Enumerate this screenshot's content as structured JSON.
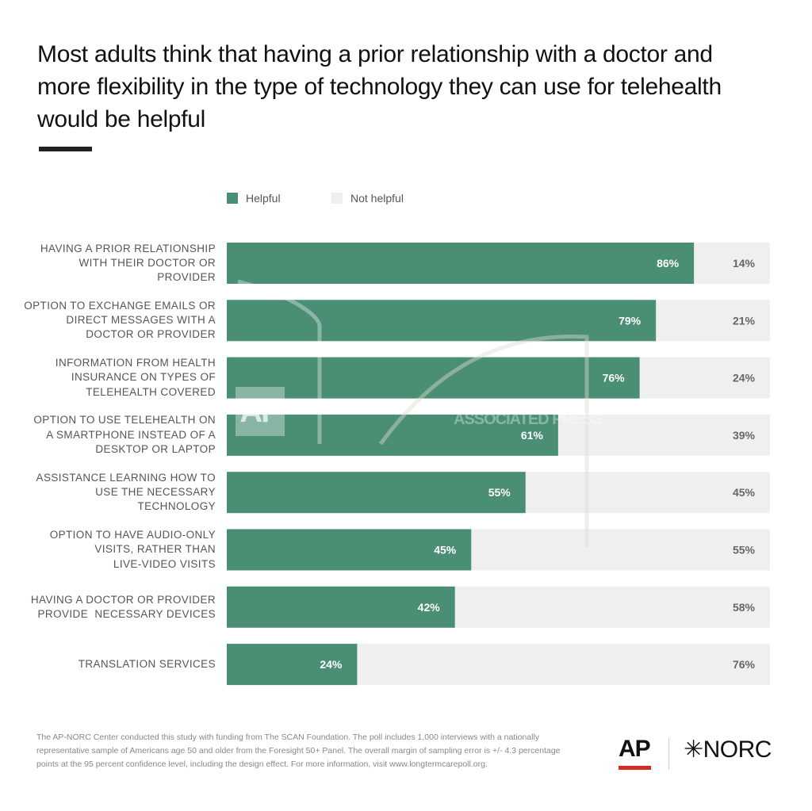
{
  "title": "Most adults think that having a prior relationship with a doctor and more flexibility in the type of technology they can use for telehealth would be helpful",
  "legend": {
    "helpful": "Helpful",
    "not_helpful": "Not helpful"
  },
  "colors": {
    "helpful": "#4a8f74",
    "not_helpful": "#efefef",
    "label_helpful": "#ffffff",
    "label_not_helpful": "#666666"
  },
  "chart_data": {
    "type": "bar",
    "orientation": "horizontal",
    "stacked": true,
    "categories": [
      "HAVING A PRIOR RELATIONSHIP WITH THEIR DOCTOR OR PROVIDER",
      "OPTION TO EXCHANGE EMAILS OR DIRECT MESSAGES WITH A DOCTOR OR PROVIDER",
      "INFORMATION FROM HEALTH INSURANCE ON TYPES OF TELEHEALTH COVERED",
      "OPTION TO USE TELEHEALTH ON A SMARTPHONE INSTEAD OF A DESKTOP OR LAPTOP",
      "ASSISTANCE LEARNING HOW TO USE THE NECESSARY TECHNOLOGY",
      "OPTION TO HAVE AUDIO-ONLY VISITS, RATHER THAN LIVE-VIDEO VISITS",
      "HAVING A DOCTOR OR PROVIDER PROVIDE  NECESSARY DEVICES",
      "TRANSLATION SERVICES"
    ],
    "category_lines": [
      [
        "HAVING A PRIOR RELATIONSHIP",
        "WITH THEIR DOCTOR OR",
        "PROVIDER"
      ],
      [
        "OPTION TO EXCHANGE EMAILS OR",
        "DIRECT MESSAGES WITH A",
        "DOCTOR OR PROVIDER"
      ],
      [
        "INFORMATION FROM HEALTH",
        "INSURANCE ON TYPES OF",
        "TELEHEALTH COVERED"
      ],
      [
        "OPTION TO USE TELEHEALTH ON",
        "A SMARTPHONE INSTEAD OF A",
        "DESKTOP OR LAPTOP"
      ],
      [
        "ASSISTANCE LEARNING HOW TO",
        "USE THE NECESSARY",
        "TECHNOLOGY"
      ],
      [
        "OPTION TO HAVE AUDIO-ONLY",
        "VISITS, RATHER THAN",
        "LIVE-VIDEO VISITS"
      ],
      [
        "HAVING A DOCTOR OR PROVIDER",
        "PROVIDE  NECESSARY DEVICES"
      ],
      [
        "TRANSLATION SERVICES"
      ]
    ],
    "series": [
      {
        "name": "Helpful",
        "values": [
          86,
          79,
          76,
          61,
          55,
          45,
          42,
          24
        ],
        "labels": [
          "86%",
          "79%",
          "76%",
          "61%",
          "55%",
          "45%",
          "42%",
          "24%"
        ]
      },
      {
        "name": "Not helpful",
        "values": [
          14,
          21,
          24,
          39,
          45,
          55,
          58,
          76
        ],
        "labels": [
          "14%",
          "21%",
          "24%",
          "39%",
          "45%",
          "55%",
          "58%",
          "76%"
        ]
      }
    ],
    "xlim": [
      0,
      100
    ],
    "legend_position": "top-left"
  },
  "footer": "The AP-NORC Center conducted this study with funding from The SCAN Foundation. The poll includes 1,000 interviews with a nationally representative sample of Americans age 50 and older from the Foresight 50+ Panel. The overall margin of sampling error is +/- 4.3 percentage points at the 95 percent confidence level, including the design effect. For more information, visit www.longtermcarepoll.org.",
  "logos": {
    "ap": "AP",
    "norc": "NORC"
  },
  "watermark": {
    "ap": "AP",
    "text": "ASSOCIATED PRESS"
  }
}
